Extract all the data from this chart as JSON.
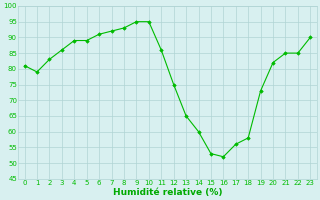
{
  "x": [
    0,
    1,
    2,
    3,
    4,
    5,
    6,
    7,
    8,
    9,
    10,
    11,
    12,
    13,
    14,
    15,
    16,
    17,
    18,
    19,
    20,
    21,
    22,
    23
  ],
  "y": [
    81,
    79,
    83,
    86,
    89,
    89,
    91,
    92,
    93,
    95,
    95,
    86,
    75,
    65,
    60,
    53,
    52,
    56,
    58,
    73,
    82,
    85,
    85,
    90
  ],
  "line_color": "#00bb00",
  "marker_color": "#00bb00",
  "bg_color": "#d8f0f0",
  "grid_color": "#b0d4d4",
  "xlabel": "Humidité relative (%)",
  "xlabel_color": "#00aa00",
  "ylim": [
    45,
    100
  ],
  "yticks": [
    45,
    50,
    55,
    60,
    65,
    70,
    75,
    80,
    85,
    90,
    95,
    100
  ],
  "xticks": [
    0,
    1,
    2,
    3,
    4,
    5,
    6,
    7,
    8,
    9,
    10,
    11,
    12,
    13,
    14,
    15,
    16,
    17,
    18,
    19,
    20,
    21,
    22,
    23
  ],
  "tick_fontsize": 5.0,
  "xlabel_fontsize": 6.5
}
